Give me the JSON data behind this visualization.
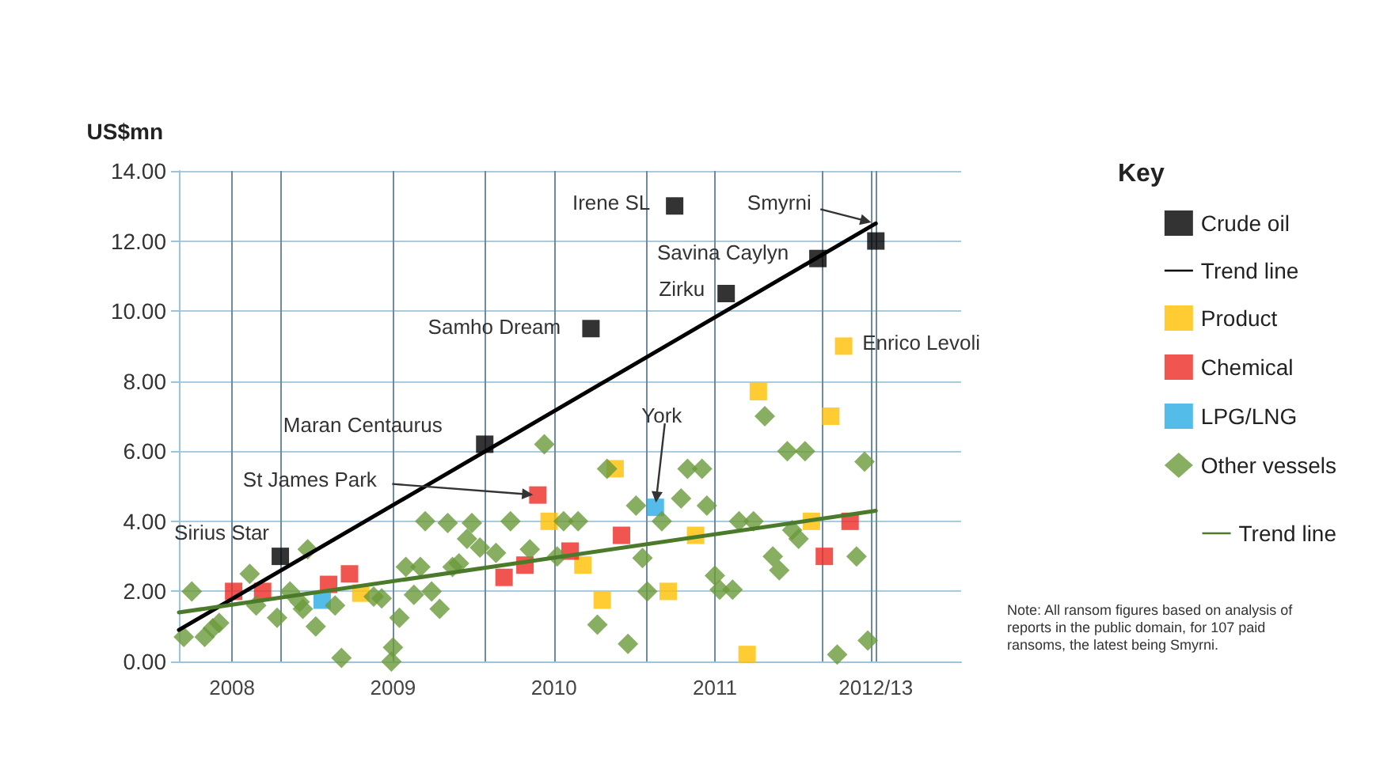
{
  "chart_data": {
    "type": "scatter",
    "ylabel": "US$mn",
    "legend_title": "Key",
    "legend": "right",
    "grid": true,
    "xlim": [
      2007.67,
      2012.53
    ],
    "xticks": [
      2008,
      {
        "value": 2008.3,
        "label": null
      },
      2009,
      {
        "value": 2009.57,
        "label": null
      },
      2010,
      {
        "value": 2010.57,
        "label": null
      },
      2011,
      {
        "value": 2011.67,
        "label": null
      },
      {
        "value": 2011.97,
        "label": null
      },
      {
        "value": 2012,
        "label": "2012/13"
      }
    ],
    "ylim": [
      0,
      14
    ],
    "yticks": [
      {
        "value": 0,
        "label": "0.00"
      },
      {
        "value": 2,
        "label": "2.00"
      },
      {
        "value": 4,
        "label": "4.00"
      },
      {
        "value": 6,
        "label": "6.00"
      },
      {
        "value": 8,
        "label": "8.00"
      },
      {
        "value": 10,
        "label": "10.00"
      },
      {
        "value": 12,
        "label": "12.00"
      },
      {
        "value": 14,
        "label": "14.00"
      }
    ],
    "series": [
      {
        "name": "Crude oil",
        "marker": "square",
        "color": "#000000",
        "x": [
          2008.3,
          2009.57,
          2010.23,
          2010.75,
          2011.07,
          2011.64,
          2012.0
        ],
        "values": [
          3.0,
          6.2,
          9.5,
          13.0,
          10.5,
          11.5,
          12.0
        ]
      },
      {
        "name": "Trend line",
        "type": "line",
        "marker": "none",
        "line_style": "solid",
        "color": "#000000",
        "x": [
          2007.67,
          2012.0
        ],
        "values": [
          0.9,
          12.5
        ]
      },
      {
        "name": "Product",
        "marker": "square",
        "color": "#ffc000",
        "x": [
          2008.8,
          2009.97,
          2010.38,
          2010.18,
          2010.3,
          2010.88,
          2010.71,
          2011.27,
          2011.2,
          2011.6,
          2011.72,
          2011.8
        ],
        "values": [
          1.95,
          4.0,
          5.5,
          2.75,
          1.75,
          3.6,
          2.0,
          7.7,
          0.2,
          4.0,
          7.0,
          9.0
        ]
      },
      {
        "name": "Chemical",
        "marker": "square",
        "color": "#ee2b24",
        "x": [
          2008.01,
          2008.19,
          2008.6,
          2008.73,
          2009.69,
          2009.82,
          2009.9,
          2010.1,
          2010.42,
          2011.68,
          2011.84
        ],
        "values": [
          2.0,
          2.0,
          2.2,
          2.5,
          2.4,
          2.75,
          4.75,
          3.15,
          3.6,
          3.0,
          4.0
        ]
      },
      {
        "name": "LPG/LNG",
        "marker": "square",
        "color": "#29abe2",
        "x": [
          2008.56,
          2010.63
        ],
        "values": [
          1.75,
          4.4
        ]
      },
      {
        "name": "Other vessels",
        "marker": "diamond",
        "color": "#6a9a3a",
        "x": [
          2007.7,
          2007.75,
          2007.83,
          2007.88,
          2007.92,
          2008.11,
          2008.15,
          2008.28,
          2008.36,
          2008.42,
          2008.44,
          2008.47,
          2008.52,
          2008.64,
          2008.68,
          2008.88,
          2008.93,
          2008.99,
          2009.0,
          2009.04,
          2009.08,
          2009.13,
          2009.17,
          2009.2,
          2009.24,
          2009.29,
          2009.34,
          2009.37,
          2009.41,
          2009.46,
          2009.49,
          2009.54,
          2009.64,
          2009.73,
          2009.85,
          2009.94,
          2010.02,
          2010.06,
          2010.15,
          2010.27,
          2010.33,
          2010.46,
          2010.51,
          2010.55,
          2010.58,
          2010.67,
          2010.79,
          2010.83,
          2010.92,
          2010.95,
          2011.0,
          2011.03,
          2011.11,
          2011.15,
          2011.24,
          2011.31,
          2011.36,
          2011.4,
          2011.45,
          2011.48,
          2011.52,
          2011.56,
          2011.76,
          2011.88,
          2011.93,
          2011.95
        ],
        "values": [
          0.7,
          2.0,
          0.7,
          0.95,
          1.1,
          2.5,
          1.6,
          1.25,
          2.0,
          1.7,
          1.5,
          3.2,
          1.0,
          1.6,
          0.1,
          1.85,
          1.8,
          0.0,
          0.4,
          1.25,
          2.7,
          1.9,
          2.7,
          4.0,
          2.0,
          1.5,
          3.95,
          2.7,
          2.8,
          3.5,
          3.95,
          3.25,
          3.1,
          4.0,
          3.2,
          6.2,
          3.0,
          4.0,
          4.0,
          1.05,
          5.5,
          0.5,
          4.45,
          2.95,
          2.0,
          4.0,
          4.65,
          5.5,
          5.5,
          4.45,
          2.45,
          2.05,
          2.05,
          4.0,
          4.0,
          7.0,
          3.0,
          2.6,
          6.0,
          3.75,
          3.5,
          6.0,
          0.2,
          3.0,
          5.7,
          0.6
        ]
      },
      {
        "name": "Trend line",
        "type": "line",
        "marker": "none",
        "line_style": "solid",
        "color": "#4a7a2a",
        "x": [
          2007.67,
          2012.0
        ],
        "values": [
          1.4,
          4.3
        ]
      }
    ],
    "annotations": [
      {
        "text": "Sirius Star",
        "x": 2008.3,
        "y": 3.0
      },
      {
        "text": "Maran Centaurus",
        "x": 2009.57,
        "y": 6.2
      },
      {
        "text": "Samho Dream",
        "x": 2010.23,
        "y": 9.5
      },
      {
        "text": "Irene SL",
        "x": 2010.75,
        "y": 13.0
      },
      {
        "text": "Zirku",
        "x": 2011.07,
        "y": 10.5
      },
      {
        "text": "Savina Caylyn",
        "x": 2011.64,
        "y": 11.5
      },
      {
        "text": "Smyrni",
        "x": 2012.0,
        "y": 12.5
      },
      {
        "text": "Enrico Levoli",
        "x": 2011.8,
        "y": 9.0
      },
      {
        "text": "St James Park",
        "x": 2009.9,
        "y": 4.75
      },
      {
        "text": "York",
        "x": 2010.63,
        "y": 4.4
      },
      "Note: All ransom figures based on analysis of reports in the public domain, for 107 paid ransoms, the latest being Smyrni."
    ]
  }
}
